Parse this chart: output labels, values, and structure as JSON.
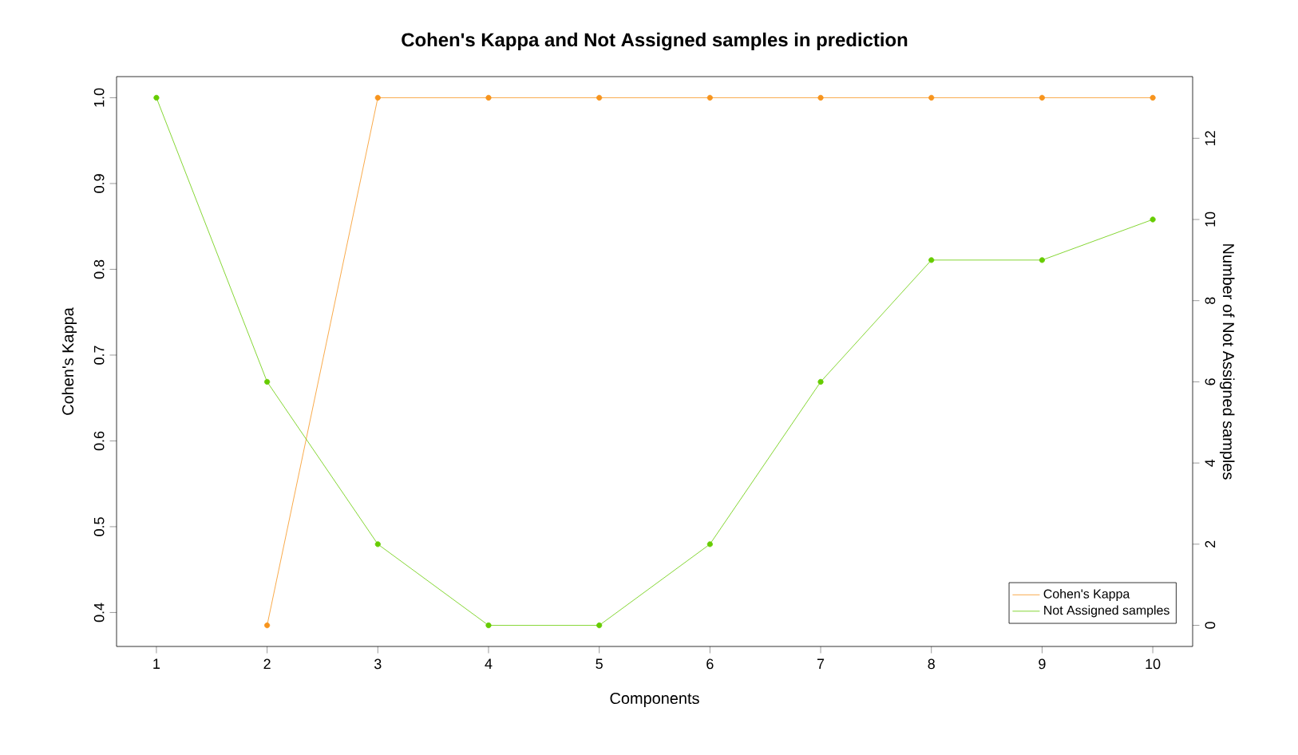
{
  "chart_data": {
    "type": "line",
    "title": "Cohen's Kappa and Not Assigned samples in prediction",
    "xlabel": "Components",
    "ylabel": "Cohen's Kappa",
    "y2label": "Number of Not Assigned samples",
    "x": [
      1,
      2,
      3,
      4,
      5,
      6,
      7,
      8,
      9,
      10
    ],
    "series": [
      {
        "name": "Cohen's Kappa",
        "color": "#f7941d",
        "values": [
          null,
          0.385,
          1.0,
          1.0,
          1.0,
          1.0,
          1.0,
          1.0,
          1.0,
          1.0
        ]
      },
      {
        "name": "Not Assigned samples",
        "color": "#66cc00",
        "axis": "y2",
        "values": [
          13,
          6,
          2,
          0,
          0,
          2,
          6,
          9,
          9,
          10
        ]
      }
    ],
    "xlim": [
      0.64,
      10.36
    ],
    "xticks": [
      1,
      2,
      3,
      4,
      5,
      6,
      7,
      8,
      9,
      10
    ],
    "ylim": [
      0.3604,
      1.0246
    ],
    "yticks": [
      0.4,
      0.5,
      0.6,
      0.7,
      0.8,
      0.9,
      {
        "value": 1.0,
        "label": "1.0"
      }
    ],
    "y2lim": [
      -0.52,
      13.52
    ],
    "y2ticks": [
      0,
      2,
      4,
      6,
      8,
      10,
      12
    ],
    "marker": "circle",
    "line_style": "solid",
    "legend": "bottom right",
    "grid": false
  }
}
